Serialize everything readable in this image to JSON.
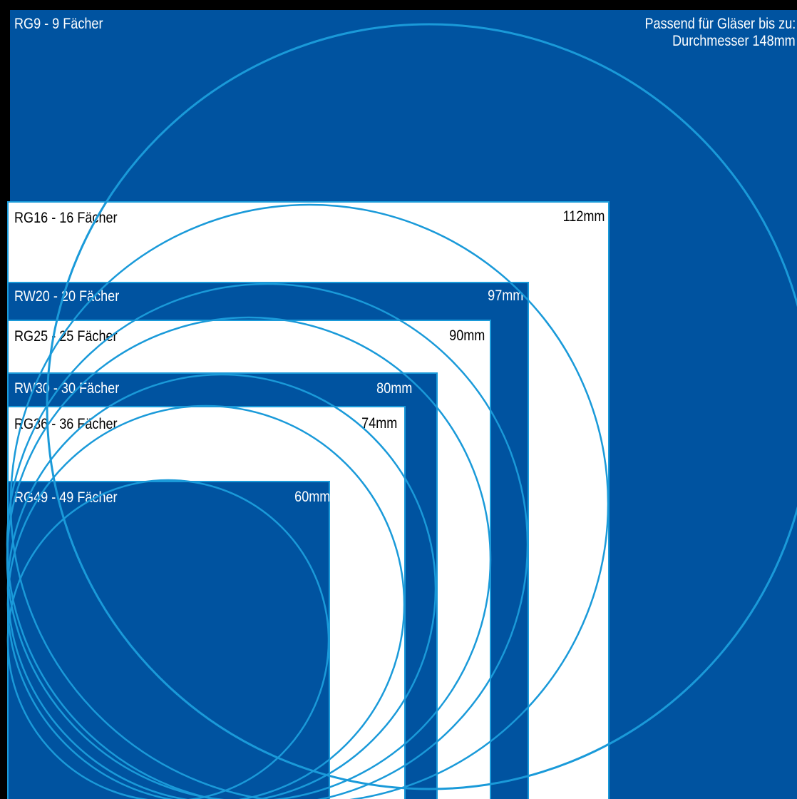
{
  "colors": {
    "blue": "#0053a0",
    "white": "#ffffff",
    "line": "#1a9ad9",
    "frame": "#000000"
  },
  "header": {
    "title": "RG9 - 9 Fächer",
    "note_line1": "Passend für Gläser bis zu:",
    "note_line2": "Durchmesser 148mm"
  },
  "racks": [
    {
      "name": "RG16  - 16 Fächer",
      "size": "112mm"
    },
    {
      "name": "RW20 - 20 Fächer",
      "size": "97mm"
    },
    {
      "name": "RG25 - 25 Fächer",
      "size": "90mm"
    },
    {
      "name": "RW30 - 30 Fächer",
      "size": "80mm"
    },
    {
      "name": "RG36 - 36 Fächer",
      "size": "74mm"
    },
    {
      "name": "RG49 - 49 Fächer",
      "size": "60mm"
    }
  ]
}
